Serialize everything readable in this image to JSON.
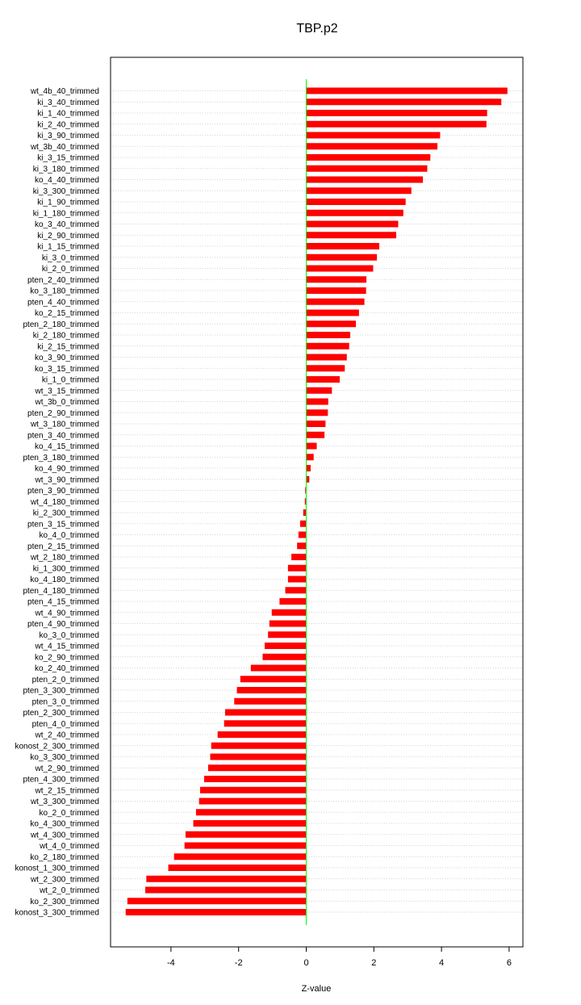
{
  "chart_data": {
    "type": "bar",
    "orientation": "horizontal",
    "title": "TBP.p2",
    "xlabel": "Z-value",
    "xlim": [
      -5.6,
      6.4
    ],
    "xticks": [
      -4,
      -2,
      0,
      2,
      4,
      6
    ],
    "grid": "horizontal dotted lines per category",
    "reference_line": 0,
    "bar_color": "#ff0000",
    "reference_line_color": "#00ff00",
    "categories": [
      "wt_4b_40_trimmed",
      "ki_3_40_trimmed",
      "ki_1_40_trimmed",
      "ki_2_40_trimmed",
      "ki_3_90_trimmed",
      "wt_3b_40_trimmed",
      "ki_3_15_trimmed",
      "ki_3_180_trimmed",
      "ko_4_40_trimmed",
      "ki_3_300_trimmed",
      "ki_1_90_trimmed",
      "ki_1_180_trimmed",
      "ko_3_40_trimmed",
      "ki_2_90_trimmed",
      "ki_1_15_trimmed",
      "ki_3_0_trimmed",
      "ki_2_0_trimmed",
      "pten_2_40_trimmed",
      "ko_3_180_trimmed",
      "pten_4_40_trimmed",
      "ko_2_15_trimmed",
      "pten_2_180_trimmed",
      "ki_2_180_trimmed",
      "ki_2_15_trimmed",
      "ko_3_90_trimmed",
      "ko_3_15_trimmed",
      "ki_1_0_trimmed",
      "wt_3_15_trimmed",
      "wt_3b_0_trimmed",
      "pten_2_90_trimmed",
      "wt_3_180_trimmed",
      "pten_3_40_trimmed",
      "ko_4_15_trimmed",
      "pten_3_180_trimmed",
      "ko_4_90_trimmed",
      "wt_3_90_trimmed",
      "pten_3_90_trimmed",
      "wt_4_180_trimmed",
      "ki_2_300_trimmed",
      "pten_3_15_trimmed",
      "ko_4_0_trimmed",
      "pten_2_15_trimmed",
      "wt_2_180_trimmed",
      "ki_1_300_trimmed",
      "ko_4_180_trimmed",
      "pten_4_180_trimmed",
      "pten_4_15_trimmed",
      "wt_4_90_trimmed",
      "pten_4_90_trimmed",
      "ko_3_0_trimmed",
      "wt_4_15_trimmed",
      "ko_2_90_trimmed",
      "ko_2_40_trimmed",
      "pten_2_0_trimmed",
      "pten_3_300_trimmed",
      "pten_3_0_trimmed",
      "pten_2_300_trimmed",
      "pten_4_0_trimmed",
      "wt_2_40_trimmed",
      "konost_2_300_trimmed",
      "ko_3_300_trimmed",
      "wt_2_90_trimmed",
      "pten_4_300_trimmed",
      "wt_2_15_trimmed",
      "wt_3_300_trimmed",
      "ko_2_0_trimmed",
      "ko_4_300_trimmed",
      "wt_4_300_trimmed",
      "wt_4_0_trimmed",
      "ko_2_180_trimmed",
      "konost_1_300_trimmed",
      "wt_2_300_trimmed",
      "wt_2_0_trimmed",
      "ko_2_300_trimmed",
      "konost_3_300_trimmed"
    ],
    "values": [
      5.95,
      5.77,
      5.35,
      5.33,
      3.96,
      3.88,
      3.67,
      3.58,
      3.45,
      3.11,
      2.94,
      2.87,
      2.72,
      2.66,
      2.16,
      2.09,
      1.98,
      1.78,
      1.77,
      1.72,
      1.56,
      1.47,
      1.3,
      1.27,
      1.2,
      1.14,
      0.99,
      0.76,
      0.65,
      0.64,
      0.57,
      0.54,
      0.31,
      0.22,
      0.13,
      0.09,
      -0.03,
      -0.04,
      -0.09,
      -0.18,
      -0.23,
      -0.27,
      -0.44,
      -0.54,
      -0.54,
      -0.62,
      -0.79,
      -1.02,
      -1.09,
      -1.13,
      -1.23,
      -1.29,
      -1.64,
      -1.95,
      -2.05,
      -2.13,
      -2.4,
      -2.43,
      -2.62,
      -2.81,
      -2.84,
      -2.9,
      -3.02,
      -3.14,
      -3.17,
      -3.26,
      -3.34,
      -3.57,
      -3.6,
      -3.91,
      -4.08,
      -4.73,
      -4.76,
      -5.29,
      -5.34
    ]
  }
}
